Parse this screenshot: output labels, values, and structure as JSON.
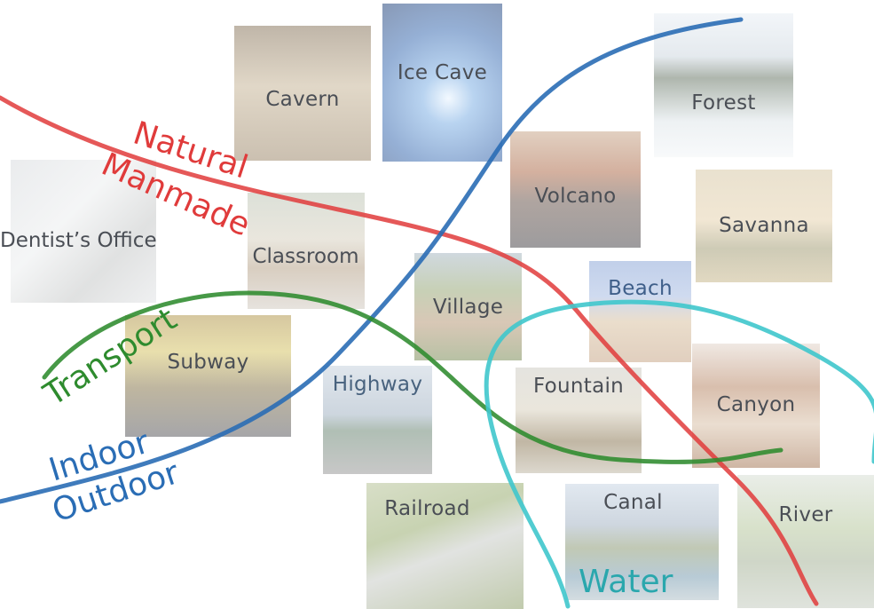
{
  "scenes": {
    "cavern": "Cavern",
    "ice_cave": "Ice Cave",
    "forest": "Forest",
    "volcano": "Volcano",
    "savanna": "Savanna",
    "dentists_office": "Dentist’s Office",
    "classroom": "Classroom",
    "village": "Village",
    "beach": "Beach",
    "subway": "Subway",
    "highway": "Highway",
    "fountain": "Fountain",
    "canyon": "Canyon",
    "railroad": "Railroad",
    "canal": "Canal",
    "river": "River"
  },
  "axes": {
    "natural": "Natural",
    "manmade": "Manmade",
    "transport": "Transport",
    "indoor": "Indoor",
    "outdoor": "Outdoor",
    "water": "Water"
  },
  "colors": {
    "natural_manmade": "#e03b3b",
    "indoor_outdoor": "#2a6db5",
    "transport": "#2e8b2e",
    "water": "#3fc6cc"
  }
}
